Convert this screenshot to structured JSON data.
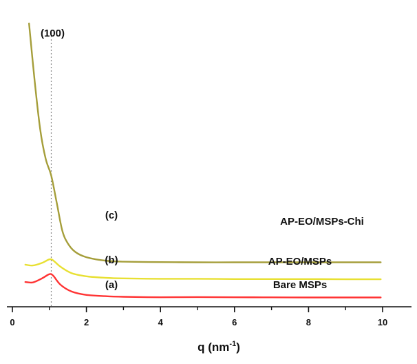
{
  "chart_data": {
    "type": "line",
    "title": "",
    "xlabel": "q (nm",
    "xlabel_sup": "-1",
    "xlabel_close": ")",
    "ylabel": "",
    "xlim": [
      0,
      10
    ],
    "x_ticks": [
      0,
      2,
      4,
      6,
      8,
      10
    ],
    "x_tick_labels": [
      "0",
      "2",
      "4",
      "6",
      "8",
      "10"
    ],
    "y_axis_visible": false,
    "grid": false,
    "reference_line": {
      "x": 1.05,
      "label": "(100)",
      "style": "dotted"
    },
    "series": [
      {
        "name": "Bare MSPs",
        "tag": "(a)",
        "color": "#ff3333",
        "points": [
          [
            0.35,
            0.78
          ],
          [
            0.55,
            0.76
          ],
          [
            0.8,
            0.95
          ],
          [
            1.0,
            1.15
          ],
          [
            1.1,
            1.08
          ],
          [
            1.3,
            0.65
          ],
          [
            1.6,
            0.33
          ],
          [
            2.0,
            0.17
          ],
          [
            2.5,
            0.11
          ],
          [
            3.0,
            0.08
          ],
          [
            4.0,
            0.06
          ],
          [
            5.0,
            0.07
          ],
          [
            6.0,
            0.06
          ],
          [
            7.0,
            0.055
          ],
          [
            8.0,
            0.05
          ],
          [
            9.0,
            0.05
          ],
          [
            9.95,
            0.05
          ]
        ]
      },
      {
        "name": "AP-EO/MSPs",
        "tag": "(b)",
        "color": "#e8e032",
        "points": [
          [
            0.35,
            1.6
          ],
          [
            0.55,
            1.56
          ],
          [
            0.8,
            1.68
          ],
          [
            1.0,
            1.85
          ],
          [
            1.1,
            1.8
          ],
          [
            1.3,
            1.5
          ],
          [
            1.6,
            1.2
          ],
          [
            2.0,
            1.05
          ],
          [
            2.5,
            0.98
          ],
          [
            3.0,
            0.95
          ],
          [
            4.0,
            0.93
          ],
          [
            5.0,
            0.93
          ],
          [
            6.0,
            0.92
          ],
          [
            7.0,
            0.92
          ],
          [
            8.0,
            0.92
          ],
          [
            9.0,
            0.91
          ],
          [
            9.95,
            0.91
          ]
        ]
      },
      {
        "name": "AP-EO/MSPs-Chi",
        "tag": "(c)",
        "color": "#a59e3a",
        "points": [
          [
            0.45,
            13.0
          ],
          [
            0.6,
            10.3
          ],
          [
            0.75,
            8.0
          ],
          [
            0.9,
            6.6
          ],
          [
            1.05,
            5.8
          ],
          [
            1.2,
            4.5
          ],
          [
            1.35,
            3.2
          ],
          [
            1.5,
            2.6
          ],
          [
            1.7,
            2.2
          ],
          [
            2.0,
            1.95
          ],
          [
            2.5,
            1.79
          ],
          [
            3.0,
            1.74
          ],
          [
            4.0,
            1.72
          ],
          [
            5.0,
            1.71
          ],
          [
            6.0,
            1.71
          ],
          [
            7.0,
            1.71
          ],
          [
            8.0,
            1.71
          ],
          [
            9.0,
            1.71
          ],
          [
            9.95,
            1.71
          ]
        ]
      }
    ]
  }
}
